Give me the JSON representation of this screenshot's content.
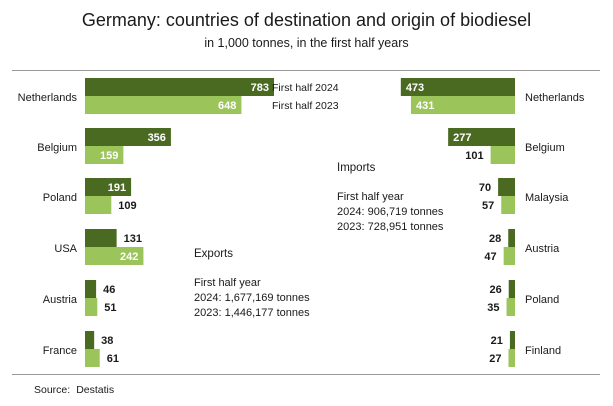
{
  "title": "Germany: countries of destination and origin of biodiesel",
  "subtitle": "in 1,000 tonnes, in the first half years",
  "source_label": "Source:",
  "source_value": "Destatis",
  "colors": {
    "y2024": "#4a6a22",
    "y2023": "#9bc45a"
  },
  "exports_box": {
    "heading": "Exports",
    "period": "First half year",
    "line_2024": "2024: 1,677,169 tonnes",
    "line_2023": "2023: 1,446,177 tonnes"
  },
  "imports_box": {
    "heading": "Imports",
    "period": "First half year",
    "line_2024": "2024: 906,719 tonnes",
    "line_2023": "2023: 728,951 tonnes"
  },
  "chart_data": [
    {
      "type": "bar",
      "panel": "exports",
      "categories": [
        "Netherlands",
        "Belgium",
        "Poland",
        "USA",
        "Austria",
        "France"
      ],
      "series": [
        {
          "name": "First half 2024",
          "values": [
            783,
            356,
            191,
            131,
            46,
            38
          ]
        },
        {
          "name": "First half 2023",
          "values": [
            648,
            159,
            109,
            242,
            51,
            61
          ]
        }
      ],
      "orientation": "horizontal",
      "direction": "left-to-right"
    },
    {
      "type": "bar",
      "panel": "imports",
      "categories": [
        "Netherlands",
        "Belgium",
        "Malaysia",
        "Austria",
        "Poland",
        "Finland"
      ],
      "series": [
        {
          "name": "First half 2024",
          "values": [
            473,
            277,
            70,
            28,
            26,
            21
          ]
        },
        {
          "name": "First half 2023",
          "values": [
            431,
            101,
            57,
            47,
            35,
            27
          ]
        }
      ],
      "orientation": "horizontal",
      "direction": "right-to-left"
    }
  ]
}
